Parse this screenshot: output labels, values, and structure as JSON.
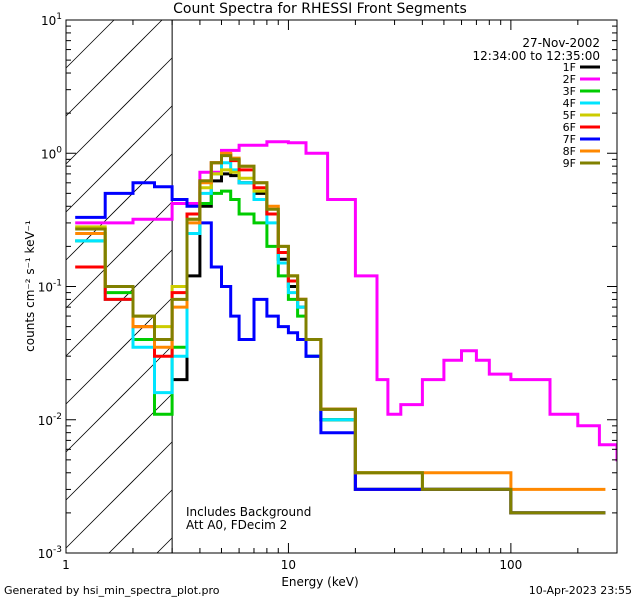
{
  "chart_data": {
    "type": "line",
    "title": "Count Spectra for RHESSI Front Segments",
    "xlabel": "Energy (keV)",
    "ylabel": "counts cm⁻² s⁻¹ keV⁻¹",
    "xscale": "log",
    "yscale": "log",
    "xlim": [
      1,
      300
    ],
    "ylim": [
      0.001,
      10
    ],
    "x_ticks": [
      {
        "value": 1,
        "label": "1"
      },
      {
        "value": 10,
        "label": "10"
      },
      {
        "value": 100,
        "label": "100"
      }
    ],
    "y_ticks": [
      {
        "value": 10,
        "mantissa": "10",
        "exp": "1"
      },
      {
        "value": 1,
        "mantissa": "10",
        "exp": "0"
      },
      {
        "value": 0.1,
        "mantissa": "10",
        "exp": "-1"
      },
      {
        "value": 0.01,
        "mantissa": "10",
        "exp": "-2"
      },
      {
        "value": 0.001,
        "mantissa": "10",
        "exp": "-3"
      }
    ],
    "hatched_region_keV": [
      1,
      3
    ],
    "date": "27-Nov-2002",
    "time_range": "12:34:00 to 12:35:00",
    "annotation_lines": [
      "Includes Background",
      "Att A0, FDecim 2"
    ],
    "legend_position": "top-right",
    "series": [
      {
        "name": "1F",
        "color": "#000000",
        "x": [
          3,
          3.5,
          4,
          4.5,
          5,
          5.5,
          6,
          7,
          8,
          9,
          10,
          11,
          12,
          14,
          20,
          40,
          100,
          250
        ],
        "y": [
          0.02,
          0.12,
          0.4,
          0.62,
          0.7,
          0.68,
          0.6,
          0.5,
          0.35,
          0.16,
          0.1,
          0.07,
          0.03,
          0.01,
          0.003,
          0.003,
          0.002,
          0.002
        ]
      },
      {
        "name": "2F",
        "color": "#ff00ff",
        "x": [
          1.1,
          2,
          3,
          4,
          5,
          6,
          8,
          10,
          12,
          15,
          20,
          25,
          28,
          32,
          40,
          50,
          60,
          70,
          80,
          100,
          150,
          200,
          250,
          300
        ],
        "y": [
          0.3,
          0.32,
          0.42,
          0.72,
          1.05,
          1.15,
          1.22,
          1.2,
          1.0,
          0.45,
          0.12,
          0.02,
          0.011,
          0.013,
          0.02,
          0.028,
          0.033,
          0.028,
          0.022,
          0.02,
          0.011,
          0.009,
          0.0065,
          0.005
        ]
      },
      {
        "name": "3F",
        "color": "#00cc00",
        "x": [
          1.1,
          1.5,
          2,
          2.5,
          3,
          3.5,
          4,
          4.5,
          5,
          5.5,
          6,
          7,
          8,
          9,
          10,
          11,
          12,
          14,
          20,
          40,
          100,
          250
        ],
        "y": [
          0.22,
          0.09,
          0.04,
          0.011,
          0.035,
          0.25,
          0.42,
          0.5,
          0.52,
          0.45,
          0.35,
          0.3,
          0.2,
          0.12,
          0.08,
          0.06,
          0.03,
          0.01,
          0.003,
          0.003,
          0.002,
          0.002
        ]
      },
      {
        "name": "4F",
        "color": "#00e5ff",
        "x": [
          1.1,
          1.5,
          2,
          2.5,
          3,
          3.5,
          4,
          4.5,
          5,
          5.5,
          6,
          7,
          8,
          9,
          10,
          11,
          12,
          14,
          20,
          40,
          100,
          250
        ],
        "y": [
          0.22,
          0.08,
          0.035,
          0.016,
          0.03,
          0.25,
          0.5,
          0.7,
          0.85,
          0.75,
          0.6,
          0.45,
          0.3,
          0.15,
          0.09,
          0.07,
          0.03,
          0.01,
          0.003,
          0.003,
          0.002,
          0.002
        ]
      },
      {
        "name": "5F",
        "color": "#cccc00",
        "x": [
          1.1,
          1.5,
          2,
          2.5,
          3,
          3.5,
          4,
          4.5,
          5,
          5.5,
          6,
          7,
          8,
          9,
          10,
          11,
          12,
          14,
          20,
          40,
          100,
          250
        ],
        "y": [
          0.28,
          0.1,
          0.06,
          0.05,
          0.1,
          0.32,
          0.55,
          0.7,
          0.75,
          0.72,
          0.65,
          0.52,
          0.35,
          0.18,
          0.12,
          0.08,
          0.04,
          0.012,
          0.004,
          0.003,
          0.002,
          0.002
        ]
      },
      {
        "name": "6F",
        "color": "#ff0000",
        "x": [
          1.1,
          1.5,
          2,
          2.5,
          3,
          3.5,
          4,
          4.5,
          5,
          5.5,
          6,
          7,
          8,
          9,
          10,
          11,
          12,
          14,
          20,
          40,
          100,
          250
        ],
        "y": [
          0.14,
          0.08,
          0.05,
          0.03,
          0.09,
          0.35,
          0.62,
          0.85,
          0.98,
          0.88,
          0.75,
          0.55,
          0.35,
          0.18,
          0.11,
          0.08,
          0.04,
          0.012,
          0.003,
          0.003,
          0.002,
          0.002
        ]
      },
      {
        "name": "7F",
        "color": "#0000ff",
        "x": [
          1.1,
          1.5,
          2,
          2.5,
          3,
          3.5,
          4,
          4.5,
          5,
          5.5,
          6,
          7,
          8,
          9,
          10,
          11,
          12,
          14,
          20,
          40,
          100,
          250
        ],
        "y": [
          0.33,
          0.5,
          0.6,
          0.56,
          0.45,
          0.4,
          0.3,
          0.14,
          0.1,
          0.06,
          0.04,
          0.08,
          0.06,
          0.05,
          0.045,
          0.04,
          0.03,
          0.008,
          0.003,
          0.003,
          0.002,
          0.002
        ]
      },
      {
        "name": "8F",
        "color": "#ff8800",
        "x": [
          1.1,
          1.5,
          2,
          2.5,
          3,
          3.5,
          4,
          4.5,
          5,
          5.5,
          6,
          7,
          8,
          9,
          10,
          11,
          12,
          14,
          20,
          40,
          100,
          250
        ],
        "y": [
          0.25,
          0.1,
          0.05,
          0.035,
          0.07,
          0.3,
          0.6,
          0.85,
          1.0,
          0.92,
          0.8,
          0.6,
          0.4,
          0.2,
          0.12,
          0.08,
          0.04,
          0.012,
          0.004,
          0.004,
          0.003,
          0.003
        ]
      },
      {
        "name": "9F",
        "color": "#808000",
        "x": [
          1.1,
          1.5,
          2,
          2.5,
          3,
          3.5,
          4,
          4.5,
          5,
          5.5,
          6,
          7,
          8,
          9,
          10,
          11,
          12,
          14,
          20,
          40,
          100,
          250
        ],
        "y": [
          0.27,
          0.1,
          0.06,
          0.04,
          0.08,
          0.32,
          0.62,
          0.85,
          0.96,
          0.9,
          0.8,
          0.6,
          0.38,
          0.2,
          0.12,
          0.08,
          0.04,
          0.012,
          0.004,
          0.003,
          0.002,
          0.002
        ]
      }
    ]
  },
  "footer": {
    "generated_by": "Generated by hsi_min_spectra_plot.pro",
    "timestamp": "10-Apr-2023 23:55"
  }
}
